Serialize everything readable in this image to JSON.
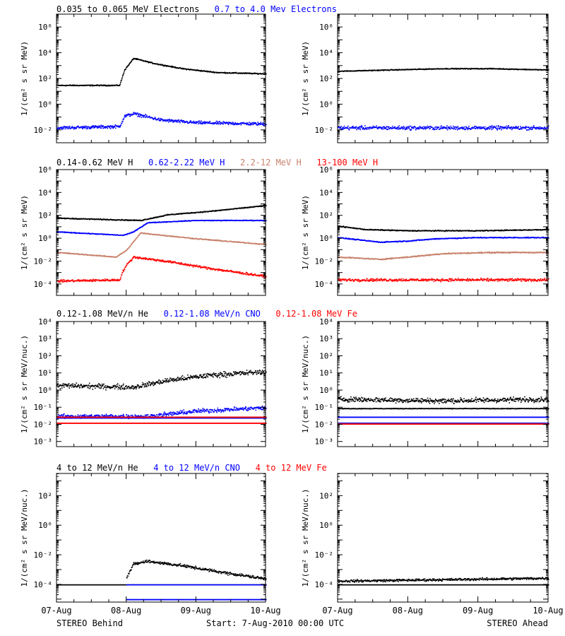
{
  "colors": {
    "black": "#000000",
    "blue": "#0000ff",
    "tan": "#c8826c",
    "red": "#ff0000"
  },
  "footer": {
    "left": "STEREO Behind",
    "center": "Start:  7-Aug-2010 00:00 UTC",
    "right": "STEREO Ahead"
  },
  "x_tick_labels": [
    "07-Aug",
    "08-Aug",
    "09-Aug",
    "10-Aug"
  ],
  "chart_data": [
    {
      "type": "scatter",
      "row": 1,
      "titles": [
        {
          "text": "0.035 to 0.065 MeV Electrons",
          "color": "black"
        },
        {
          "text": "0.7 to 4.0 Mev Electrons",
          "color": "blue"
        }
      ],
      "ylabel": "1/(cm² s sr MeV)",
      "y_log10_range": [
        -3,
        7
      ],
      "y_ticks": [
        {
          "exp": -2,
          "label": "10⁻²"
        },
        {
          "exp": 0,
          "label": "10⁰"
        },
        {
          "exp": 2,
          "label": "10²"
        },
        {
          "exp": 4,
          "label": "10⁴"
        },
        {
          "exp": 6,
          "label": "10⁶"
        }
      ],
      "xlim_days": [
        0,
        3
      ],
      "panels": [
        {
          "spacecraft": "STEREO Behind",
          "series": [
            {
              "color": "black",
              "log10_values": [
                [
                  0.0,
                  1.5
                ],
                [
                  0.9,
                  1.5
                ],
                [
                  0.97,
                  2.7
                ],
                [
                  1.1,
                  3.6
                ],
                [
                  1.4,
                  3.2
                ],
                [
                  1.8,
                  2.8
                ],
                [
                  2.3,
                  2.5
                ],
                [
                  3.0,
                  2.4
                ]
              ],
              "noise": 0.05
            },
            {
              "color": "blue",
              "log10_values": [
                [
                  0.0,
                  -1.8
                ],
                [
                  0.9,
                  -1.7
                ],
                [
                  0.97,
                  -0.9
                ],
                [
                  1.1,
                  -0.7
                ],
                [
                  1.5,
                  -1.2
                ],
                [
                  2.0,
                  -1.4
                ],
                [
                  3.0,
                  -1.5
                ]
              ],
              "noise": 0.15
            }
          ]
        },
        {
          "spacecraft": "STEREO Ahead",
          "series": [
            {
              "color": "black",
              "log10_values": [
                [
                  0.0,
                  2.6
                ],
                [
                  1.5,
                  2.8
                ],
                [
                  2.2,
                  2.8
                ],
                [
                  3.0,
                  2.7
                ]
              ],
              "noise": 0.04
            },
            {
              "color": "blue",
              "log10_values": [
                [
                  0.0,
                  -1.8
                ],
                [
                  3.0,
                  -1.8
                ]
              ],
              "noise": 0.18
            }
          ]
        }
      ]
    },
    {
      "type": "scatter",
      "row": 2,
      "titles": [
        {
          "text": "0.14-0.62 MeV H",
          "color": "black"
        },
        {
          "text": "0.62-2.22 MeV H",
          "color": "blue"
        },
        {
          "text": "2.2-12 MeV H",
          "color": "tan"
        },
        {
          "text": "13-100 MeV H",
          "color": "red"
        }
      ],
      "ylabel": "1/(cm² s sr MeV)",
      "y_log10_range": [
        -5,
        6
      ],
      "y_ticks": [
        {
          "exp": -4,
          "label": "10⁻⁴"
        },
        {
          "exp": -2,
          "label": "10⁻²"
        },
        {
          "exp": 0,
          "label": "10⁰"
        },
        {
          "exp": 2,
          "label": "10²"
        },
        {
          "exp": 4,
          "label": "10⁴"
        },
        {
          "exp": 6,
          "label": "10⁶"
        }
      ],
      "xlim_days": [
        0,
        3
      ],
      "panels": [
        {
          "spacecraft": "STEREO Behind",
          "series": [
            {
              "color": "black",
              "log10_values": [
                [
                  0.0,
                  1.8
                ],
                [
                  1.2,
                  1.6
                ],
                [
                  1.6,
                  2.1
                ],
                [
                  2.2,
                  2.4
                ],
                [
                  3.0,
                  2.9
                ]
              ],
              "noise": 0.05
            },
            {
              "color": "blue",
              "log10_values": [
                [
                  0.0,
                  0.6
                ],
                [
                  0.95,
                  0.3
                ],
                [
                  1.1,
                  0.6
                ],
                [
                  1.3,
                  1.4
                ],
                [
                  2.0,
                  1.6
                ],
                [
                  3.0,
                  1.6
                ]
              ],
              "noise": 0.04
            },
            {
              "color": "tan",
              "log10_values": [
                [
                  0.0,
                  -1.2
                ],
                [
                  0.85,
                  -1.6
                ],
                [
                  1.0,
                  -1.0
                ],
                [
                  1.2,
                  0.5
                ],
                [
                  2.0,
                  0.0
                ],
                [
                  3.0,
                  -0.5
                ]
              ],
              "noise": 0.05
            },
            {
              "color": "red",
              "log10_values": [
                [
                  0.0,
                  -3.7
                ],
                [
                  0.9,
                  -3.6
                ],
                [
                  0.95,
                  -2.8
                ],
                [
                  1.0,
                  -2.3
                ],
                [
                  1.1,
                  -1.6
                ],
                [
                  1.6,
                  -2.0
                ],
                [
                  2.2,
                  -2.6
                ],
                [
                  3.0,
                  -3.3
                ]
              ],
              "noise": 0.12
            }
          ]
        },
        {
          "spacecraft": "STEREO Ahead",
          "series": [
            {
              "color": "black",
              "log10_values": [
                [
                  0.0,
                  1.1
                ],
                [
                  0.4,
                  0.8
                ],
                [
                  1.0,
                  0.7
                ],
                [
                  2.0,
                  0.7
                ],
                [
                  3.0,
                  0.8
                ]
              ],
              "noise": 0.05
            },
            {
              "color": "blue",
              "log10_values": [
                [
                  0.0,
                  0.1
                ],
                [
                  0.6,
                  -0.3
                ],
                [
                  1.0,
                  -0.2
                ],
                [
                  1.4,
                  0.0
                ],
                [
                  2.0,
                  0.1
                ],
                [
                  3.0,
                  0.1
                ]
              ],
              "noise": 0.05
            },
            {
              "color": "tan",
              "log10_values": [
                [
                  0.0,
                  -1.6
                ],
                [
                  0.6,
                  -1.8
                ],
                [
                  1.0,
                  -1.6
                ],
                [
                  1.5,
                  -1.3
                ],
                [
                  2.2,
                  -1.2
                ],
                [
                  3.0,
                  -1.2
                ]
              ],
              "noise": 0.06
            },
            {
              "color": "red",
              "log10_values": [
                [
                  0.0,
                  -3.6
                ],
                [
                  3.0,
                  -3.6
                ]
              ],
              "noise": 0.15
            }
          ]
        }
      ]
    },
    {
      "type": "scatter",
      "row": 3,
      "titles": [
        {
          "text": "0.12-1.08 MeV/n He",
          "color": "black"
        },
        {
          "text": "0.12-1.08 MeV/n CNO",
          "color": "blue"
        },
        {
          "text": "0.12-1.08 MeV Fe",
          "color": "red"
        }
      ],
      "ylabel": "1/(cm² s sr MeV/nuc.)",
      "y_log10_range": [
        -3.3,
        4
      ],
      "y_ticks": [
        {
          "exp": -3,
          "label": "10⁻³"
        },
        {
          "exp": -2,
          "label": "10⁻²"
        },
        {
          "exp": -1,
          "label": "10⁻¹"
        },
        {
          "exp": 0,
          "label": "10⁰"
        },
        {
          "exp": 1,
          "label": "10¹"
        },
        {
          "exp": 2,
          "label": "10²"
        },
        {
          "exp": 3,
          "label": "10³"
        },
        {
          "exp": 4,
          "label": "10⁴"
        }
      ],
      "xlim_days": [
        0,
        3
      ],
      "panels": [
        {
          "spacecraft": "STEREO Behind",
          "series": [
            {
              "color": "black",
              "log10_values": [
                [
                  0.0,
                  0.3
                ],
                [
                  1.1,
                  0.2
                ],
                [
                  1.6,
                  0.6
                ],
                [
                  2.2,
                  0.9
                ],
                [
                  3.0,
                  1.1
                ]
              ],
              "noise": 0.18
            },
            {
              "color": "blue",
              "log10_values": [
                [
                  0.0,
                  -1.5
                ],
                [
                  1.3,
                  -1.5
                ],
                [
                  2.0,
                  -1.2
                ],
                [
                  2.5,
                  -1.1
                ],
                [
                  3.0,
                  -1.0
                ]
              ],
              "noise": 0.15
            },
            {
              "color": "blue",
              "log10_values": [
                [
                  0.0,
                  -1.6
                ],
                [
                  3.0,
                  -1.6
                ]
              ],
              "noise": 0.0
            },
            {
              "color": "red",
              "log10_values": [
                [
                  0.0,
                  -1.9
                ],
                [
                  3.0,
                  -1.9
                ]
              ],
              "noise": 0.0
            },
            {
              "color": "red",
              "log10_values": [
                [
                  0.0,
                  -1.55
                ],
                [
                  3.0,
                  -1.55
                ]
              ],
              "noise": 0.0
            }
          ]
        },
        {
          "spacecraft": "STEREO Ahead",
          "series": [
            {
              "color": "black",
              "log10_values": [
                [
                  0.0,
                  -0.5
                ],
                [
                  1.5,
                  -0.6
                ],
                [
                  3.0,
                  -0.5
                ]
              ],
              "noise": 0.18
            },
            {
              "color": "black",
              "log10_values": [
                [
                  0.0,
                  -1.05
                ],
                [
                  3.0,
                  -1.05
                ]
              ],
              "noise": 0.02
            },
            {
              "color": "blue",
              "log10_values": [
                [
                  0.0,
                  -1.55
                ],
                [
                  3.0,
                  -1.55
                ]
              ],
              "noise": 0.0
            },
            {
              "color": "blue",
              "log10_values": [
                [
                  0.0,
                  -1.9
                ],
                [
                  3.0,
                  -1.9
                ]
              ],
              "noise": 0.0
            },
            {
              "color": "red",
              "log10_values": [
                [
                  0.0,
                  -1.95
                ],
                [
                  3.0,
                  -1.95
                ]
              ],
              "noise": 0.0
            }
          ]
        }
      ]
    },
    {
      "type": "scatter",
      "row": 4,
      "titles": [
        {
          "text": "4 to 12 MeV/n He",
          "color": "black"
        },
        {
          "text": "4 to 12 MeV/n CNO",
          "color": "blue"
        },
        {
          "text": "4 to 12 MeV Fe",
          "color": "red"
        }
      ],
      "ylabel": "1/(cm² s sr MeV/nuc.)",
      "y_log10_range": [
        -5.2,
        3.5
      ],
      "y_ticks": [
        {
          "exp": -4,
          "label": "10⁻⁴"
        },
        {
          "exp": -2,
          "label": "10⁻²"
        },
        {
          "exp": 0,
          "label": "10⁰"
        },
        {
          "exp": 2,
          "label": "10²"
        }
      ],
      "xlim_days": [
        0,
        3
      ],
      "panels": [
        {
          "spacecraft": "STEREO Behind",
          "series": [
            {
              "color": "black",
              "log10_values": [
                [
                  0.0,
                  -4.0
                ],
                [
                  3.0,
                  -4.0
                ]
              ],
              "noise": 0.0
            },
            {
              "color": "black",
              "log10_values": [
                [
                  1.0,
                  -3.5
                ],
                [
                  1.1,
                  -2.6
                ],
                [
                  1.3,
                  -2.4
                ],
                [
                  1.8,
                  -2.7
                ],
                [
                  2.3,
                  -3.1
                ],
                [
                  3.0,
                  -3.6
                ]
              ],
              "noise": 0.12
            },
            {
              "color": "blue",
              "log10_values": [
                [
                  1.0,
                  -4.0
                ],
                [
                  3.0,
                  -4.0
                ]
              ],
              "noise": 0.0
            },
            {
              "color": "blue",
              "log10_values": [
                [
                  1.0,
                  -5.0
                ],
                [
                  3.0,
                  -5.0
                ]
              ],
              "noise": 0.0
            }
          ]
        },
        {
          "spacecraft": "STEREO Ahead",
          "series": [
            {
              "color": "black",
              "log10_values": [
                [
                  0.0,
                  -4.0
                ],
                [
                  3.0,
                  -4.0
                ]
              ],
              "noise": 0.0
            },
            {
              "color": "black",
              "log10_values": [
                [
                  0.0,
                  -3.75
                ],
                [
                  3.0,
                  -3.55
                ]
              ],
              "noise": 0.1
            }
          ]
        }
      ]
    }
  ]
}
